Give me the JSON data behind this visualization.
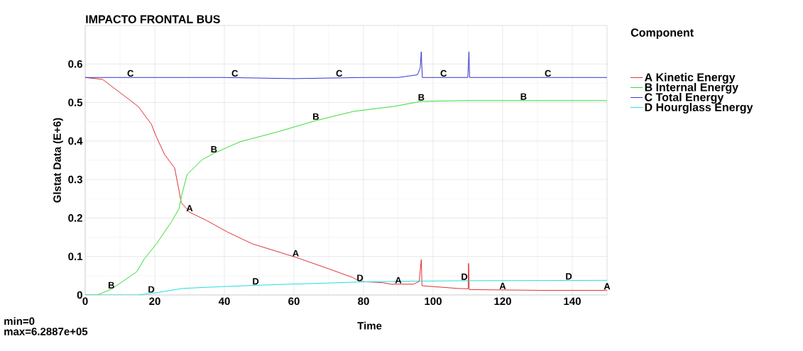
{
  "chart_data": {
    "type": "line",
    "title": "IMPACTO FRONTAL BUS",
    "xlabel": "Time",
    "ylabel": "Glstat Data (E+6)",
    "legend_title": "Component",
    "legend": "right",
    "grid": true,
    "xlim": [
      0,
      150
    ],
    "ylim": [
      0,
      0.7
    ],
    "xticks": [
      0,
      20,
      40,
      60,
      80,
      100,
      120,
      140
    ],
    "yticks": [
      0,
      0.1,
      0.2,
      0.3,
      0.4,
      0.5,
      0.6
    ],
    "series": [
      {
        "name": "A Kinetic Energy",
        "color": "#e03030",
        "x": [
          0,
          5,
          10.4,
          15.2,
          19,
          20.5,
          22.8,
          25.7,
          27,
          27.6,
          30,
          35,
          41,
          48,
          60.5,
          70,
          77,
          79,
          85.4,
          88,
          94.3,
          96,
          96.6,
          96.8,
          107,
          110.1,
          110.2,
          110.4,
          130.5,
          150
        ],
        "values": [
          0.565,
          0.56,
          0.523,
          0.49,
          0.444,
          0.41,
          0.365,
          0.33,
          0.27,
          0.24,
          0.215,
          0.193,
          0.163,
          0.133,
          0.098,
          0.068,
          0.045,
          0.035,
          0.032,
          0.028,
          0.028,
          0.035,
          0.092,
          0.024,
          0.017,
          0.016,
          0.082,
          0.014,
          0.012,
          0.012
        ]
      },
      {
        "name": "B Internal Energy",
        "color": "#33dd33",
        "x": [
          0,
          3.5,
          7.5,
          14.8,
          17,
          20.5,
          25,
          27,
          27.7,
          29.3,
          33.7,
          37,
          44.5,
          55.4,
          66.3,
          77.2,
          88.8,
          96.6,
          110,
          150
        ],
        "values": [
          0,
          0,
          0.015,
          0.06,
          0.094,
          0.133,
          0.193,
          0.225,
          0.258,
          0.313,
          0.352,
          0.368,
          0.398,
          0.424,
          0.453,
          0.477,
          0.49,
          0.503,
          0.505,
          0.505
        ]
      },
      {
        "name": "C Total Energy",
        "color": "#3333cc",
        "x": [
          0,
          20,
          40,
          60,
          80,
          90,
          95.5,
          96.3,
          96.6,
          96.9,
          110,
          110.3,
          110.5,
          150
        ],
        "values": [
          0.565,
          0.565,
          0.565,
          0.562,
          0.565,
          0.565,
          0.572,
          0.59,
          0.632,
          0.565,
          0.565,
          0.632,
          0.565,
          0.565
        ]
      },
      {
        "name": "D Hourglass Energy",
        "color": "#22dddd",
        "x": [
          0,
          15,
          20,
          28,
          40,
          55,
          70,
          80,
          95,
          110,
          150
        ],
        "values": [
          0,
          0,
          0.005,
          0.017,
          0.022,
          0.027,
          0.031,
          0.034,
          0.036,
          0.037,
          0.038
        ]
      }
    ],
    "annotations": [
      {
        "text": "A",
        "x": 30,
        "y": 0.215
      },
      {
        "text": "A",
        "x": 60.5,
        "y": 0.098
      },
      {
        "text": "A",
        "x": 90,
        "y": 0.028
      },
      {
        "text": "A",
        "x": 120,
        "y": 0.013
      },
      {
        "text": "A",
        "x": 150,
        "y": 0.012
      },
      {
        "text": "B",
        "x": 7.5,
        "y": 0.015
      },
      {
        "text": "B",
        "x": 37,
        "y": 0.368
      },
      {
        "text": "B",
        "x": 66.3,
        "y": 0.453
      },
      {
        "text": "B",
        "x": 96.6,
        "y": 0.503
      },
      {
        "text": "B",
        "x": 126,
        "y": 0.505
      },
      {
        "text": "C",
        "x": 13,
        "y": 0.565
      },
      {
        "text": "C",
        "x": 43,
        "y": 0.565
      },
      {
        "text": "C",
        "x": 73,
        "y": 0.565
      },
      {
        "text": "C",
        "x": 103,
        "y": 0.565
      },
      {
        "text": "C",
        "x": 133,
        "y": 0.565
      },
      {
        "text": "D",
        "x": 19,
        "y": 0.004
      },
      {
        "text": "D",
        "x": 49,
        "y": 0.025
      },
      {
        "text": "D",
        "x": 79,
        "y": 0.034
      },
      {
        "text": "D",
        "x": 109,
        "y": 0.037
      },
      {
        "text": "D",
        "x": 139,
        "y": 0.038
      },
      "min=0",
      "max=6.2887e+05"
    ]
  }
}
